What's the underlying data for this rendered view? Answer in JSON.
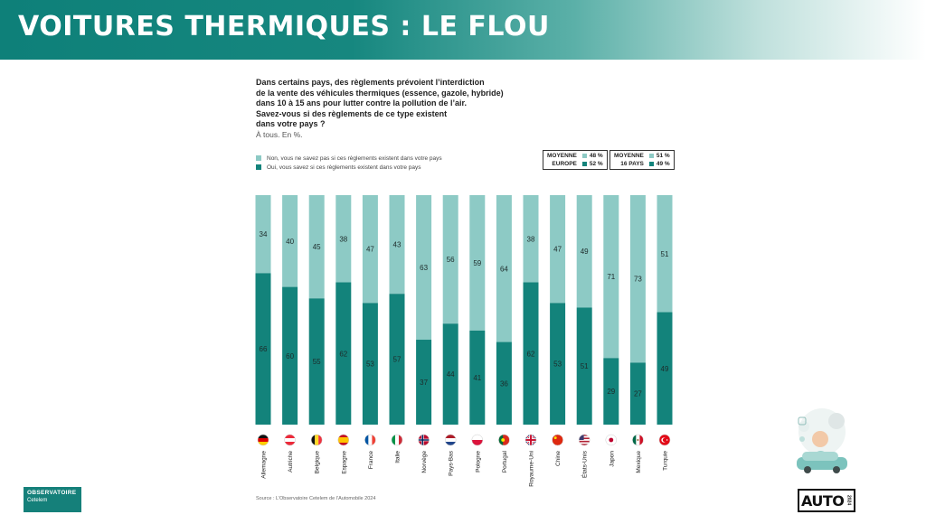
{
  "banner": {
    "title": "VOITURES THERMIQUES : LE FLOU"
  },
  "question": {
    "lines": [
      "Dans certains pays, des règlements prévoient l’interdiction",
      "de la vente des véhicules thermiques (essence, gazole, hybride)",
      "dans 10 à 15 ans pour lutter contre la pollution de l’air.",
      "Savez-vous si des règlements de ce type existent",
      "dans votre pays ?"
    ],
    "subtitle": "À tous. En %."
  },
  "legend": {
    "non_label": "Non, vous ne savez pas si ces règlements existent dans votre pays",
    "oui_label": "Oui, vous savez si ces règlements existent dans votre pays"
  },
  "averages": {
    "europe": {
      "label1": "MOYENNE",
      "label2": "EUROPE",
      "non": "48 %",
      "oui": "52 %"
    },
    "pays16": {
      "label1": "MOYENNE",
      "label2": "16 PAYS",
      "non": "51 %",
      "oui": "49 %"
    }
  },
  "colors": {
    "non": "#8dcac5",
    "oui": "#13837b",
    "banner": "#0e8079"
  },
  "chart_data": {
    "type": "bar",
    "stacked": true,
    "categories": [
      "Allemagne",
      "Autriche",
      "Belgique",
      "Espagne",
      "France",
      "Italie",
      "Norvège",
      "Pays-Bas",
      "Pologne",
      "Portugal",
      "Royaume-Uni",
      "Chine",
      "États-Unis",
      "Japon",
      "Mexique",
      "Turquie"
    ],
    "series": [
      {
        "name": "Oui, vous savez si ces règlements existent dans votre pays",
        "values": [
          66,
          60,
          55,
          62,
          53,
          57,
          37,
          44,
          41,
          36,
          62,
          53,
          51,
          29,
          27,
          49
        ]
      },
      {
        "name": "Non, vous ne savez pas si ces règlements existent dans votre pays",
        "values": [
          34,
          40,
          45,
          38,
          47,
          43,
          63,
          56,
          59,
          64,
          38,
          47,
          49,
          71,
          73,
          51
        ]
      }
    ],
    "ylim": [
      0,
      100
    ]
  },
  "flags": [
    "flag-germany-icon",
    "flag-austria-icon",
    "flag-belgium-icon",
    "flag-spain-icon",
    "flag-france-icon",
    "flag-italy-icon",
    "flag-norway-icon",
    "flag-netherlands-icon",
    "flag-poland-icon",
    "flag-portugal-icon",
    "flag-uk-icon",
    "flag-china-icon",
    "flag-usa-icon",
    "flag-japan-icon",
    "flag-mexico-icon",
    "flag-turkey-icon"
  ],
  "source": "Source : L’Observatoire Cetelem de l’Automobile 2024",
  "logos": {
    "observatoire": "OBSERVATOIRE",
    "observatoire_sub": "Cetelem",
    "auto": "AUTO",
    "auto_year": "2024"
  }
}
